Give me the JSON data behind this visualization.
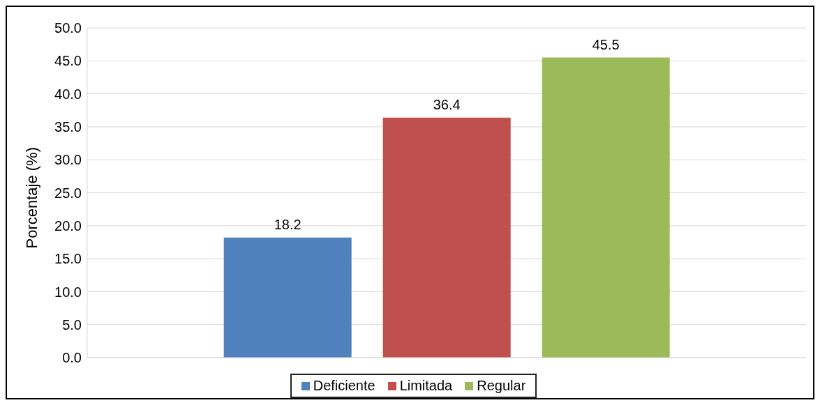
{
  "chart_data": {
    "type": "bar",
    "ylabel": "Porcentaje (%)",
    "categories": [
      null
    ],
    "series": [
      {
        "name": "Deficiente",
        "color": "#4f81bd",
        "values": [
          18.2
        ]
      },
      {
        "name": "Limitada",
        "color": "#c0504d",
        "values": [
          36.4
        ]
      },
      {
        "name": "Regular",
        "color": "#9bbb59",
        "values": [
          45.5
        ]
      }
    ],
    "ylim": [
      0,
      50
    ],
    "yticks": [
      {
        "value": 0,
        "label": "0.0"
      },
      {
        "value": 5,
        "label": "5.0"
      },
      {
        "value": 10,
        "label": "10.0"
      },
      {
        "value": 15,
        "label": "15.0"
      },
      {
        "value": 20,
        "label": "20.0"
      },
      {
        "value": 25,
        "label": "25.0"
      },
      {
        "value": 30,
        "label": "30.0"
      },
      {
        "value": 35,
        "label": "35.0"
      },
      {
        "value": 40,
        "label": "40.0"
      },
      {
        "value": 45,
        "label": "45.0"
      },
      {
        "value": 50,
        "label": "50.0"
      }
    ],
    "grid": "y",
    "legend": "bottom",
    "data_labels": true
  }
}
